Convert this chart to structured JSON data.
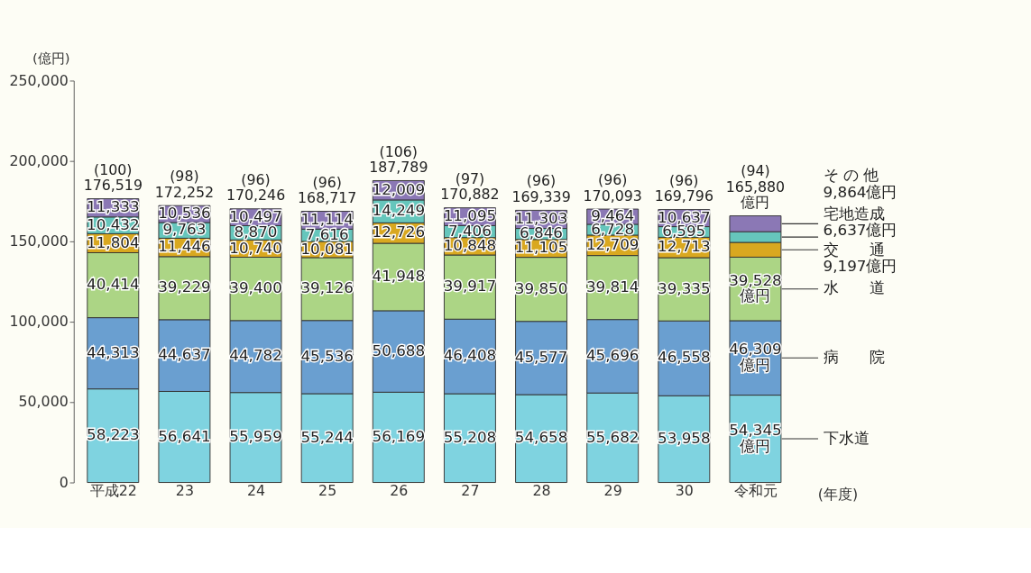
{
  "chart_data": {
    "type": "bar",
    "stacked": true,
    "ylabel": "(億円)",
    "xlabel": "(年度)",
    "categories": [
      "平成22",
      "23",
      "24",
      "25",
      "26",
      "27",
      "28",
      "29",
      "30",
      "令和元"
    ],
    "series": [
      {
        "name": "下水道",
        "color": "#7fd3e0",
        "values": [
          58223,
          56641,
          55959,
          55244,
          56169,
          55208,
          54658,
          55682,
          53958,
          54345
        ],
        "value_labels": [
          "58,223",
          "56,641",
          "55,959",
          "55,244",
          "56,169",
          "55,208",
          "54,658",
          "55,682",
          "53,958",
          "54,345\n億円"
        ]
      },
      {
        "name": "病　　院",
        "color": "#6a9fd0",
        "values": [
          44313,
          44637,
          44782,
          45536,
          50688,
          46408,
          45577,
          45696,
          46558,
          46309
        ],
        "value_labels": [
          "44,313",
          "44,637",
          "44,782",
          "45,536",
          "50,688",
          "46,408",
          "45,577",
          "45,696",
          "46,558",
          "46,309\n億円"
        ]
      },
      {
        "name": "水　　道",
        "color": "#acd585",
        "values": [
          40414,
          39229,
          39400,
          39126,
          41948,
          39917,
          39850,
          39814,
          39335,
          39528
        ],
        "value_labels": [
          "40,414",
          "39,229",
          "39,400",
          "39,126",
          "41,948",
          "39,917",
          "39,850",
          "39,814",
          "39,335",
          "39,528\n億円"
        ]
      },
      {
        "name": "交　　通",
        "color": "#d9a820",
        "values": [
          11804,
          11446,
          10740,
          10081,
          12726,
          10848,
          11105,
          12709,
          12713,
          9197
        ],
        "value_labels": [
          "11,804",
          "11,446",
          "10,740",
          "10,081",
          "12,726",
          "10,848",
          "11,105",
          "12,709",
          "12,713",
          null
        ]
      },
      {
        "name": "宅地造成",
        "color": "#66c6bc",
        "values": [
          10432,
          9763,
          8870,
          7616,
          14249,
          7406,
          6846,
          6728,
          6595,
          6637
        ],
        "value_labels": [
          "10,432",
          "9,763",
          "8,870",
          "7,616",
          "14,249",
          "7,406",
          "6,846",
          "6,728",
          "6,595",
          null
        ]
      },
      {
        "name": "そ の 他",
        "color": "#8b78b5",
        "values": [
          11333,
          10536,
          10497,
          11114,
          12009,
          11095,
          11303,
          9464,
          10637,
          9864
        ],
        "value_labels": [
          "11,333",
          "10,536",
          "10,497",
          "11,114",
          "12,009",
          "11,095",
          "11,303",
          "9,464",
          "10,637",
          null
        ]
      }
    ],
    "totals": [
      "(100)\n176,519",
      "(98)\n172,252",
      "(96)\n170,246",
      "(96)\n168,717",
      "(106)\n187,789",
      "(97)\n170,882",
      "(96)\n169,339",
      "(96)\n170,093",
      "(96)\n169,796",
      "(94)\n165,880\n億円"
    ],
    "annotations": [
      "9,864億円",
      "6,637億円",
      "9,197億円"
    ],
    "ylim": [
      0,
      250000
    ],
    "yticks": [
      0,
      {
        "value": 50000,
        "label": "50,000"
      },
      {
        "value": 100000,
        "label": "100,000"
      },
      {
        "value": 150000,
        "label": "150,000"
      },
      {
        "value": 200000,
        "label": "200,000"
      },
      {
        "value": 250000,
        "label": "250,000"
      }
    ],
    "grid": false,
    "legend": "right"
  }
}
